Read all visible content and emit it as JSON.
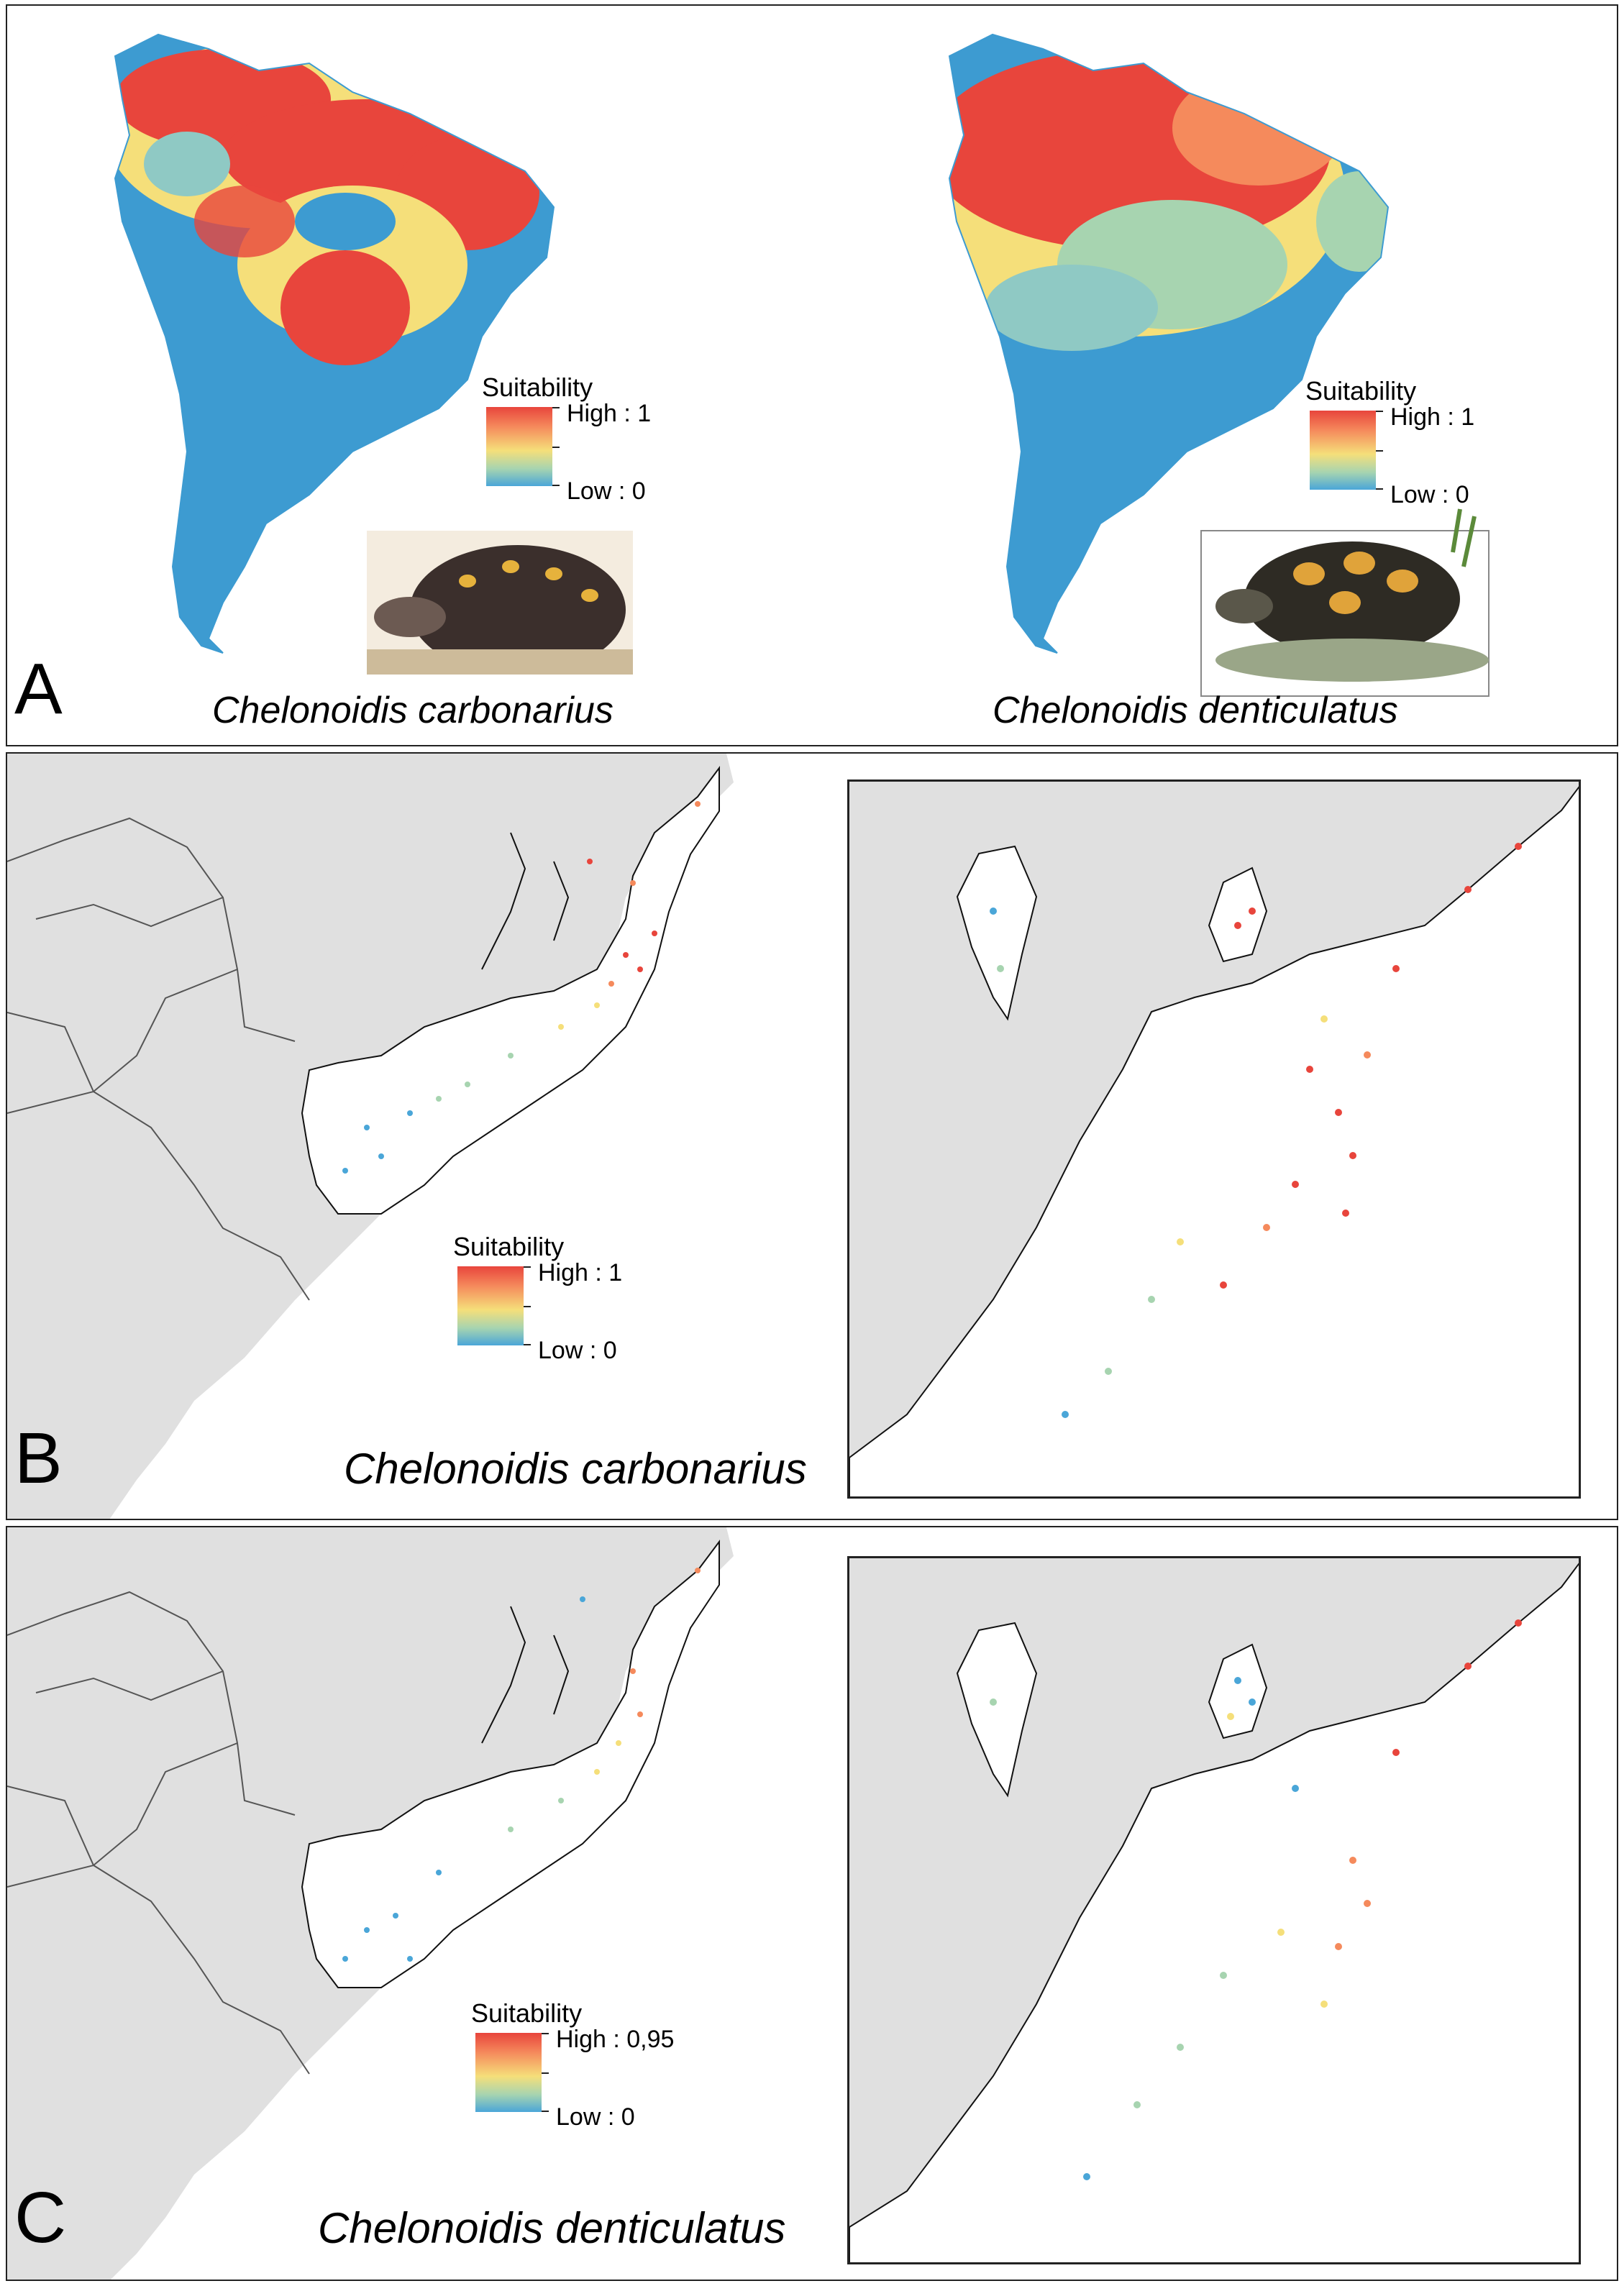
{
  "panels": {
    "a": {
      "letter": "A",
      "left_species": "Chelonoidis carbonarius",
      "right_species": "Chelonoidis denticulatus",
      "left_legend": {
        "title": "Suitability",
        "high": "High : 1",
        "low": "Low : 0"
      },
      "right_legend": {
        "title": "Suitability",
        "high": "High : 1",
        "low": "Low : 0"
      }
    },
    "b": {
      "letter": "B",
      "species": "Chelonoidis carbonarius",
      "legend": {
        "title": "Suitability",
        "high": "High : 1",
        "low": "Low : 0"
      }
    },
    "c": {
      "letter": "C",
      "species": "Chelonoidis denticulatus",
      "legend": {
        "title": "Suitability",
        "high": "High : 0,95",
        "low": "Low : 0"
      }
    }
  },
  "colors": {
    "high": "#e8453c",
    "mid": "#f5df7a",
    "low": "#4aa6d8",
    "land": "#e0e0e0",
    "sea": "#ffffff"
  }
}
